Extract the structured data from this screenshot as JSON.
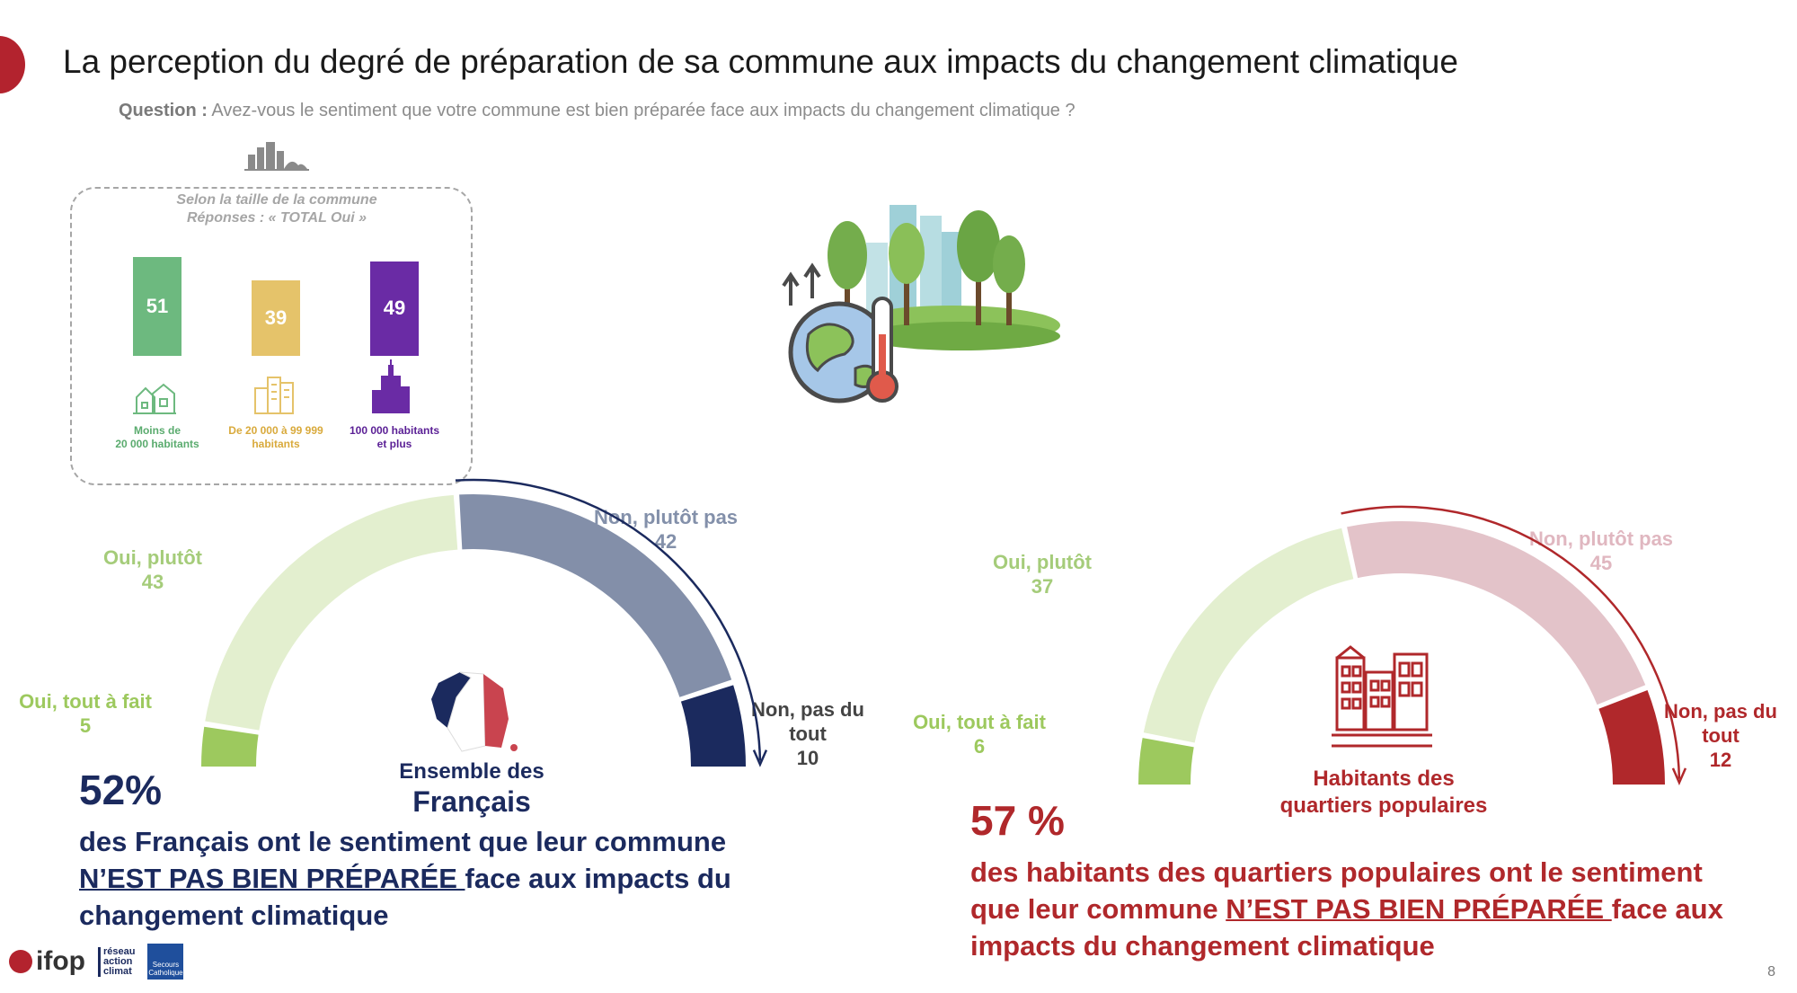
{
  "header": {
    "title": "La perception du degré de préparation de sa commune aux impacts du changement climatique",
    "question_prefix": "Question :",
    "question_text": " Avez-vous le sentiment que votre commune est bien préparée face aux impacts du changement climatique ?"
  },
  "inset": {
    "subtitle_line1": "Selon la taille de la commune",
    "subtitle_line2": "Réponses : « TOTAL Oui »"
  },
  "chart_data": [
    {
      "type": "bar",
      "title": "Selon la taille de la commune",
      "categories": [
        "Moins de 20 000 habitants",
        "De 20 000 à 99 999 habitants",
        "100 000 habitants et plus"
      ],
      "category_lines": [
        [
          "Moins de",
          "20 000 habitants"
        ],
        [
          "De 20 000 à 99 999",
          "habitants"
        ],
        [
          "100 000 habitants",
          "et plus"
        ]
      ],
      "values": [
        51,
        39,
        49
      ],
      "colors": [
        "#6db97f",
        "#e5c36a",
        "#6a2ba5"
      ],
      "label_colors": [
        "#5aab6e",
        "#d9aa3c",
        "#5a1f95"
      ]
    },
    {
      "type": "pie",
      "variant": "semicircle-gauge",
      "center_title_line1": "Ensemble des",
      "center_title_line2": "Français",
      "slices": [
        {
          "label_line1": "Oui, tout à fait",
          "value": 5,
          "color": "#9dc95e",
          "label_color": "#9dc95e"
        },
        {
          "label_line1": "Oui, plutôt",
          "value": 43,
          "color": "#e3efcf",
          "label_color": "#a5cc7a"
        },
        {
          "label_line1": "Non, plutôt pas",
          "value": 42,
          "color": "#838fa9",
          "label_color": "#8390aa"
        },
        {
          "label_line1": "Non, pas du",
          "label_line2": "tout",
          "value": 10,
          "color": "#1b2a5e",
          "label_color": "#444444"
        }
      ]
    },
    {
      "type": "pie",
      "variant": "semicircle-gauge",
      "center_title_line1": "Habitants des",
      "center_title_line2": "quartiers populaires",
      "slices": [
        {
          "label_line1": "Oui, tout à fait",
          "value": 6,
          "color": "#9dc95e",
          "label_color": "#9dc95e"
        },
        {
          "label_line1": "Oui, plutôt",
          "value": 37,
          "color": "#e3efcf",
          "label_color": "#a5cc7a"
        },
        {
          "label_line1": "Non, plutôt pas",
          "value": 45,
          "color": "#e3c3c9",
          "label_color": "#e0b7c0"
        },
        {
          "label_line1": "Non, pas du",
          "label_line2": "tout",
          "value": 12,
          "color": "#b0282b",
          "label_color": "#b0282b"
        }
      ]
    }
  ],
  "left_stat": {
    "pct": "52%",
    "line1": "des Français ont le sentiment que leur commune",
    "underlined": "N’EST PAS BIEN PRÉPARÉE ",
    "line2_rest": "face aux impacts du",
    "line3": "changement climatique",
    "color": "#1b2a5e"
  },
  "right_stat": {
    "pct": "57 %",
    "line1": "des habitants des quartiers populaires ont le sentiment",
    "line2_prefix": "que leur commune ",
    "underlined": "N’EST PAS BIEN PRÉPARÉE ",
    "line2_rest": "face aux",
    "line3": "impacts du changement climatique",
    "color": "#b0282b"
  },
  "footer": {
    "page_number": "8",
    "logo_ifop": "ifop",
    "logo_rac_lines": [
      "réseau",
      "action",
      "climat"
    ],
    "logo_sc_lines": [
      "Secours",
      "Catholique"
    ]
  }
}
